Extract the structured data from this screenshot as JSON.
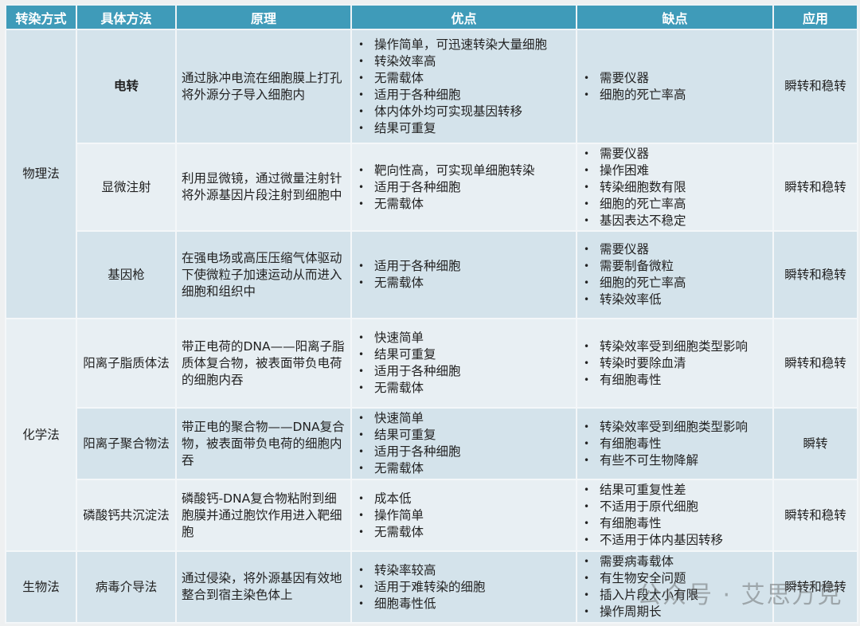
{
  "headers": [
    "转染方式",
    "具体方法",
    "原理",
    "优点",
    "缺点",
    "应用"
  ],
  "groups": [
    {
      "category": "物理法",
      "rows": [
        {
          "method": "电转",
          "bold": true,
          "principle": "通过脉冲电流在细胞膜上打孔将外源分子导入细胞内",
          "pros": [
            "操作简单，可迅速转染大量细胞",
            "转染效率高",
            "无需载体",
            "适用于各种细胞",
            "体内体外均可实现基因转移",
            "结果可重复"
          ],
          "cons": [
            "需要仪器",
            "细胞的死亡率高"
          ],
          "application": "瞬转和稳转"
        },
        {
          "method": "显微注射",
          "principle": "利用显微镜，通过微量注射针将外源基因片段注射到细胞中",
          "pros": [
            "靶向性高，可实现单细胞转染",
            "适用于各种细胞",
            "无需载体"
          ],
          "cons": [
            "需要仪器",
            "操作困难",
            "转染细胞数有限",
            "细胞的死亡率高",
            "基因表达不稳定"
          ],
          "application": "瞬转和稳转"
        },
        {
          "method": "基因枪",
          "principle": "在强电场或高压压缩气体驱动下使微粒子加速运动从而进入细胞和组织中",
          "pros": [
            "适用于各种细胞",
            "无需载体"
          ],
          "cons": [
            "需要仪器",
            "需要制备微粒",
            "细胞的死亡率高",
            "转染效率低"
          ],
          "application": "瞬转和稳转"
        }
      ]
    },
    {
      "category": "化学法",
      "rows": [
        {
          "method": "阳离子脂质体法",
          "principle": "带正电荷的DNA——阳离子脂质体复合物，被表面带负电荷的细胞内吞",
          "pros": [
            "快速简单",
            "结果可重复",
            "适用于各种细胞",
            "无需载体"
          ],
          "cons": [
            "转染效率受到细胞类型影响",
            "转染时要除血清",
            "有细胞毒性"
          ],
          "application": "瞬转和稳转"
        },
        {
          "method": "阳离子聚合物法",
          "principle": "带正电的聚合物——DNA复合物，被表面带负电荷的细胞内吞",
          "pros": [
            "快速简单",
            "结果可重复",
            "适用于各种细胞",
            "无需载体"
          ],
          "cons": [
            "转染效率受到细胞类型影响",
            "有细胞毒性",
            "有些不可生物降解"
          ],
          "application": "瞬转"
        },
        {
          "method": "磷酸钙共沉淀法",
          "principle": "磷酸钙-DNA复合物粘附到细胞膜并通过胞饮作用进入靶细胞",
          "pros": [
            "成本低",
            "操作简单",
            "无需载体"
          ],
          "cons": [
            "结果可重复性差",
            "不适用于原代细胞",
            "有细胞毒性",
            "不适用于体内基因转移"
          ],
          "application": "瞬转和稳转"
        }
      ]
    },
    {
      "category": "生物法",
      "rows": [
        {
          "method": "病毒介导法",
          "principle": "通过侵染，将外源基因有效地整合到宿主染色体上",
          "pros": [
            "转染率较高",
            "适用于难转染的细胞",
            "细胞毒性低"
          ],
          "cons": [
            "需要病毒载体",
            "有生物安全问题",
            "插入片段大小有限",
            "操作周期长"
          ],
          "application": "瞬转和稳转"
        }
      ]
    }
  ],
  "watermark": "公众号 · 艾思万克",
  "colors": {
    "header": "#3f9bb9",
    "row_dark": "#d4e3eb",
    "row_light": "#e8eff3"
  }
}
